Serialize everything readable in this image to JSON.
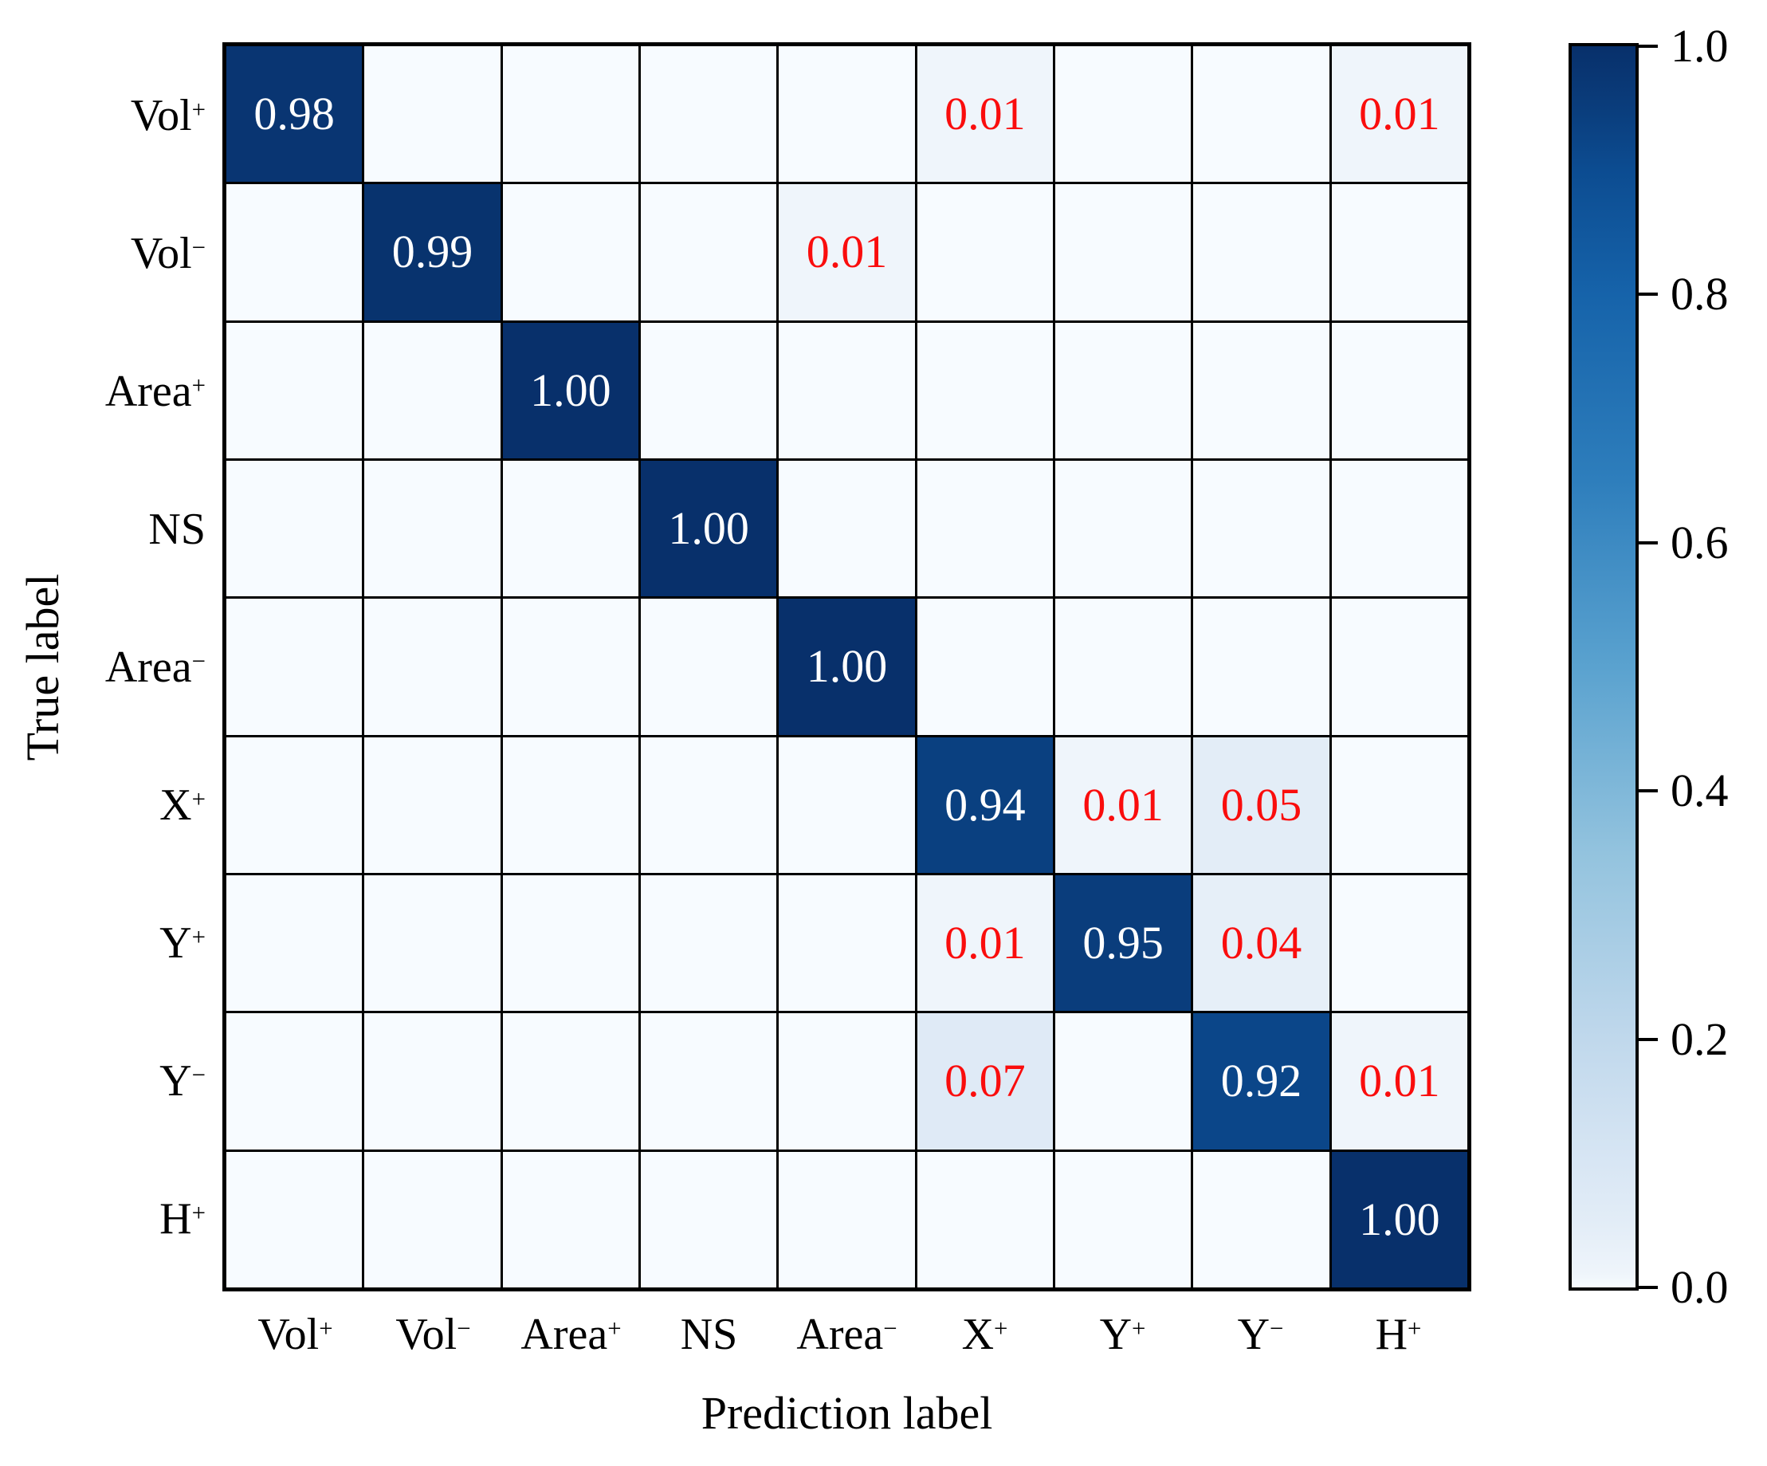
{
  "chart_data": {
    "type": "heatmap",
    "subtype": "confusion-matrix",
    "title": "",
    "xlabel": "Prediction label",
    "ylabel": "True label",
    "x_labels": [
      "Vol⁺",
      "Vol⁻",
      "Area⁺",
      "NS",
      "Area⁻",
      "X⁺",
      "Y⁺",
      "Y⁻",
      "H⁺"
    ],
    "y_labels": [
      "Vol⁺",
      "Vol⁻",
      "Area⁺",
      "NS",
      "Area⁻",
      "X⁺",
      "Y⁺",
      "Y⁻",
      "H⁺"
    ],
    "x_label_parts": [
      {
        "base": "Vol",
        "sup": "+"
      },
      {
        "base": "Vol",
        "sup": "−"
      },
      {
        "base": "Area",
        "sup": "+"
      },
      {
        "base": "NS",
        "sup": ""
      },
      {
        "base": "Area",
        "sup": "−"
      },
      {
        "base": "X",
        "sup": "+"
      },
      {
        "base": "Y",
        "sup": "+"
      },
      {
        "base": "Y",
        "sup": "−"
      },
      {
        "base": "H",
        "sup": "+"
      }
    ],
    "y_label_parts": [
      {
        "base": "Vol",
        "sup": "+"
      },
      {
        "base": "Vol",
        "sup": "−"
      },
      {
        "base": "Area",
        "sup": "+"
      },
      {
        "base": "NS",
        "sup": ""
      },
      {
        "base": "Area",
        "sup": "−"
      },
      {
        "base": "X",
        "sup": "+"
      },
      {
        "base": "Y",
        "sup": "+"
      },
      {
        "base": "Y",
        "sup": "−"
      },
      {
        "base": "H",
        "sup": "+"
      }
    ],
    "values": [
      [
        0.98,
        0,
        0,
        0,
        0,
        0.01,
        0,
        0,
        0.01
      ],
      [
        0,
        0.99,
        0,
        0,
        0.01,
        0,
        0,
        0,
        0
      ],
      [
        0,
        0,
        1.0,
        0,
        0,
        0,
        0,
        0,
        0
      ],
      [
        0,
        0,
        0,
        1.0,
        0,
        0,
        0,
        0,
        0
      ],
      [
        0,
        0,
        0,
        0,
        1.0,
        0,
        0,
        0,
        0
      ],
      [
        0,
        0,
        0,
        0,
        0,
        0.94,
        0.01,
        0.05,
        0
      ],
      [
        0,
        0,
        0,
        0,
        0,
        0.01,
        0.95,
        0.04,
        0
      ],
      [
        0,
        0,
        0,
        0,
        0,
        0.07,
        0,
        0.92,
        0.01
      ],
      [
        0,
        0,
        0,
        0,
        0,
        0,
        0,
        0,
        1.0
      ]
    ],
    "cell_text": [
      [
        "0.98",
        "",
        "",
        "",
        "",
        "0.01",
        "",
        "",
        "0.01"
      ],
      [
        "",
        "0.99",
        "",
        "",
        "0.01",
        "",
        "",
        "",
        ""
      ],
      [
        "",
        "",
        "1.00",
        "",
        "",
        "",
        "",
        "",
        ""
      ],
      [
        "",
        "",
        "",
        "1.00",
        "",
        "",
        "",
        "",
        ""
      ],
      [
        "",
        "",
        "",
        "",
        "1.00",
        "",
        "",
        "",
        ""
      ],
      [
        "",
        "",
        "",
        "",
        "",
        "0.94",
        "0.01",
        "0.05",
        ""
      ],
      [
        "",
        "",
        "",
        "",
        "",
        "0.01",
        "0.95",
        "0.04",
        ""
      ],
      [
        "",
        "",
        "",
        "",
        "",
        "0.07",
        "",
        "0.92",
        "0.01"
      ],
      [
        "",
        "",
        "",
        "",
        "",
        "",
        "",
        "",
        "1.00"
      ]
    ],
    "colorbar": {
      "ticks": [
        "1.0",
        "0.8",
        "0.6",
        "0.4",
        "0.2",
        "0.0"
      ],
      "min": 0.0,
      "max": 1.0,
      "position": "right"
    },
    "colormap_stops": [
      [
        0.0,
        "#f7fbff"
      ],
      [
        0.01,
        "#eff5fb"
      ],
      [
        0.05,
        "#e3edf7"
      ],
      [
        0.1,
        "#d8e6f4"
      ],
      [
        0.2,
        "#c0d8ec"
      ],
      [
        0.35,
        "#93c3de"
      ],
      [
        0.5,
        "#5aa2cf"
      ],
      [
        0.65,
        "#2e7ebc"
      ],
      [
        0.8,
        "#1663aa"
      ],
      [
        0.9,
        "#0c4c91"
      ],
      [
        0.95,
        "#0a3d7c"
      ],
      [
        1.0,
        "#08306b"
      ]
    ],
    "colors": {
      "diagonal_text": "#ffffff",
      "offdiagonal_text": "#fa0d0d",
      "grid_line": "#000000",
      "border": "#000000",
      "axis_text": "#000000",
      "background": "#ffffff"
    },
    "grid": true,
    "legend_position": "none",
    "axis_ranges": {
      "value_min": 0.0,
      "value_max": 1.0
    }
  }
}
